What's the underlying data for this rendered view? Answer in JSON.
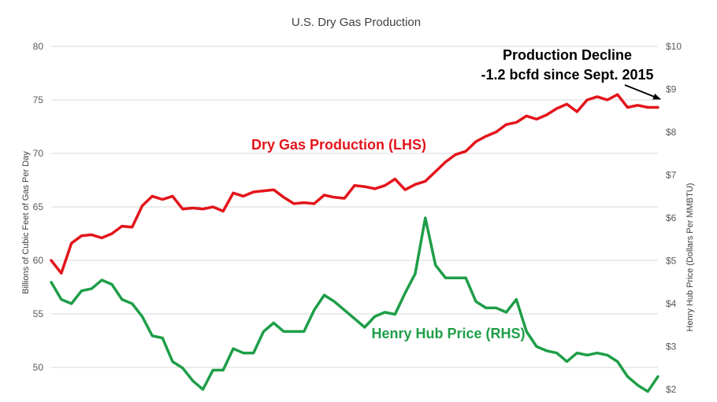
{
  "chart_data": {
    "type": "line",
    "title": "U.S. Dry Gas Production",
    "ylabel_left": "Billions  of Cubic  Feet of Gas Per Day",
    "ylabel_right": "Henry Hub Price (Dollars  Per MMBTU)",
    "ylim_left": [
      48,
      80
    ],
    "ylim_right": [
      2,
      10
    ],
    "yticks_left": [
      "50",
      "55",
      "60",
      "65",
      "70",
      "75",
      "80"
    ],
    "yticks_right": [
      "$2",
      "$3",
      "$4",
      "$5",
      "$6",
      "$7",
      "$8",
      "$9",
      "$10"
    ],
    "grid": true,
    "series": [
      {
        "name": "Dry Gas Production (LHS)",
        "axis": "left",
        "color": "#e3141b",
        "values": [
          60.0,
          58.8,
          61.6,
          62.3,
          62.4,
          62.1,
          62.5,
          63.2,
          63.1,
          65.1,
          66.0,
          65.7,
          66.0,
          64.8,
          64.9,
          64.8,
          65.0,
          64.6,
          66.3,
          66.0,
          66.4,
          66.5,
          66.6,
          65.9,
          65.3,
          65.4,
          65.3,
          66.1,
          65.9,
          65.8,
          67.0,
          66.9,
          66.7,
          67.0,
          67.6,
          66.6,
          67.1,
          67.4,
          68.3,
          69.2,
          69.9,
          70.2,
          71.1,
          71.6,
          72.0,
          72.7,
          72.9,
          73.5,
          73.2,
          73.6,
          74.2,
          74.6,
          73.9,
          75.0,
          75.3,
          75.0,
          75.5,
          74.3,
          74.5,
          74.3,
          74.3
        ]
      },
      {
        "name": "Henry Hub Price (RHS)",
        "axis": "right",
        "color": "#1e9e48",
        "values": [
          4.5,
          4.1,
          4.0,
          4.3,
          4.35,
          4.55,
          4.45,
          4.1,
          4.0,
          3.7,
          3.25,
          3.2,
          2.65,
          2.5,
          2.2,
          2.0,
          2.45,
          2.45,
          2.95,
          2.85,
          2.85,
          3.35,
          3.55,
          3.35,
          3.35,
          3.35,
          3.85,
          4.2,
          4.05,
          3.85,
          3.65,
          3.45,
          3.7,
          3.8,
          3.75,
          4.25,
          4.7,
          6.0,
          4.9,
          4.6,
          4.6,
          4.6,
          4.05,
          3.9,
          3.9,
          3.8,
          4.1,
          3.35,
          3.0,
          2.9,
          2.85,
          2.65,
          2.85,
          2.8,
          2.85,
          2.8,
          2.65,
          2.3,
          2.1,
          1.95,
          2.3
        ]
      }
    ],
    "annotations": {
      "production_label": "Dry Gas Production (LHS)",
      "price_label": "Henry Hub Price (RHS)",
      "decline_line1": "Production Decline",
      "decline_line2": "-1.2 bcfd since Sept. 2015"
    }
  }
}
